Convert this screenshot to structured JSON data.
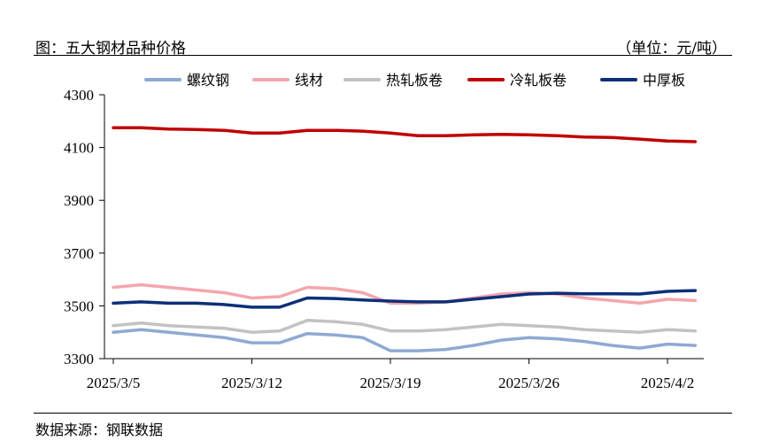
{
  "header": {
    "title": "图：五大钢材品种价格",
    "unit": "（单位：元/吨）"
  },
  "footer": {
    "source": "数据来源：钢联数据"
  },
  "chart_data": {
    "type": "line",
    "ylim": [
      3300,
      4300
    ],
    "yticks": [
      3300,
      3500,
      3700,
      3900,
      4100,
      4300
    ],
    "ytick_labels": [
      "3300",
      "3500",
      "3700",
      "3900",
      "4100",
      "4300"
    ],
    "xtick_labels": [
      "2025/3/5",
      "2025/3/12",
      "2025/3/19",
      "2025/3/26",
      "2025/4/2"
    ],
    "xtick_index": [
      0,
      5,
      10,
      15,
      20
    ],
    "legend_position": "top",
    "grid": false,
    "series": [
      {
        "name": "螺纹钢",
        "color": "#8ea9d3",
        "values": [
          3400,
          3410,
          3400,
          3390,
          3380,
          3360,
          3360,
          3395,
          3390,
          3380,
          3330,
          3330,
          3335,
          3350,
          3370,
          3380,
          3375,
          3365,
          3350,
          3340,
          3355,
          3350
        ]
      },
      {
        "name": "线材",
        "color": "#f4a6ad",
        "values": [
          3570,
          3580,
          3570,
          3560,
          3550,
          3530,
          3535,
          3570,
          3565,
          3550,
          3510,
          3510,
          3515,
          3530,
          3545,
          3550,
          3545,
          3530,
          3520,
          3510,
          3525,
          3520
        ]
      },
      {
        "name": "热轧板卷",
        "color": "#c2c2c2",
        "values": [
          3425,
          3435,
          3425,
          3420,
          3415,
          3400,
          3405,
          3445,
          3440,
          3430,
          3405,
          3405,
          3410,
          3420,
          3430,
          3425,
          3420,
          3410,
          3405,
          3400,
          3410,
          3405
        ]
      },
      {
        "name": "冷轧板卷",
        "color": "#c00000",
        "values": [
          4175,
          4175,
          4170,
          4168,
          4165,
          4155,
          4155,
          4165,
          4165,
          4162,
          4155,
          4145,
          4145,
          4148,
          4150,
          4148,
          4145,
          4140,
          4138,
          4132,
          4125,
          4122
        ]
      },
      {
        "name": "中厚板",
        "color": "#0d2f7a",
        "values": [
          3510,
          3515,
          3510,
          3510,
          3505,
          3495,
          3495,
          3530,
          3528,
          3522,
          3518,
          3515,
          3515,
          3525,
          3535,
          3545,
          3548,
          3546,
          3546,
          3545,
          3555,
          3558
        ]
      }
    ]
  }
}
